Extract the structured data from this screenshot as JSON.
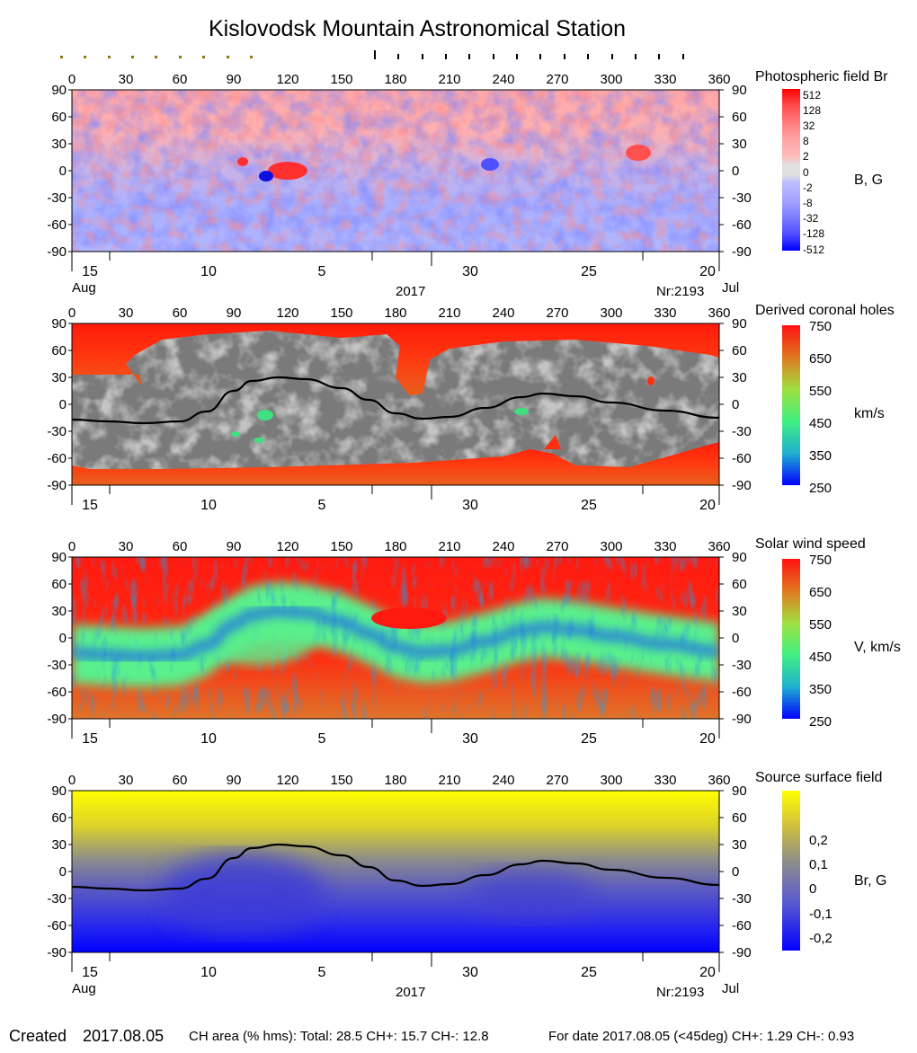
{
  "title": "Kislovodsk Mountain Astronomical Station",
  "chart_data": [
    {
      "type": "heatmap",
      "title": "Photospheric field Br",
      "unit": "B, G",
      "colorbar_ticks": [
        "512",
        "128",
        "32",
        "8",
        "2",
        "0",
        "-2",
        "-8",
        "-32",
        "-128",
        "-512"
      ],
      "x_ticks": [
        "0",
        "30",
        "60",
        "90",
        "120",
        "150",
        "180",
        "210",
        "240",
        "270",
        "300",
        "330",
        "360"
      ],
      "y_ticks": [
        "90",
        "60",
        "30",
        "0",
        "-30",
        "-60",
        "-90"
      ],
      "date_ticks": [
        "15",
        "10",
        "5",
        "30",
        "25",
        "20"
      ],
      "month_left": "Aug",
      "month_right": "Jul",
      "year": "2017",
      "rotation": "Nr:2193",
      "xlim": [
        0,
        360
      ],
      "ylim": [
        -90,
        90
      ]
    },
    {
      "type": "heatmap",
      "title": "Derived coronal holes",
      "unit": "km/s",
      "colorbar_ticks": [
        "750",
        "650",
        "550",
        "450",
        "350",
        "250"
      ],
      "x_ticks": [
        "0",
        "30",
        "60",
        "90",
        "120",
        "150",
        "180",
        "210",
        "240",
        "270",
        "300",
        "330",
        "360"
      ],
      "y_ticks": [
        "90",
        "60",
        "30",
        "0",
        "-30",
        "-60",
        "-90"
      ],
      "date_ticks": [
        "15",
        "10",
        "5",
        "30",
        "25",
        "20"
      ],
      "xlim": [
        0,
        360
      ],
      "ylim": [
        -90,
        90
      ],
      "neutral_line": [
        [
          0,
          -17
        ],
        [
          20,
          -19
        ],
        [
          40,
          -21
        ],
        [
          60,
          -19
        ],
        [
          75,
          -8
        ],
        [
          90,
          15
        ],
        [
          100,
          26
        ],
        [
          115,
          30
        ],
        [
          130,
          28
        ],
        [
          150,
          18
        ],
        [
          165,
          5
        ],
        [
          180,
          -10
        ],
        [
          195,
          -16
        ],
        [
          210,
          -14
        ],
        [
          230,
          -4
        ],
        [
          250,
          8
        ],
        [
          262,
          12
        ],
        [
          280,
          9
        ],
        [
          300,
          2
        ],
        [
          330,
          -7
        ],
        [
          360,
          -15
        ]
      ]
    },
    {
      "type": "heatmap",
      "title": "Solar wind speed",
      "unit": "V, km/s",
      "colorbar_ticks": [
        "750",
        "650",
        "550",
        "450",
        "350",
        "250"
      ],
      "x_ticks": [
        "0",
        "30",
        "60",
        "90",
        "120",
        "150",
        "180",
        "210",
        "240",
        "270",
        "300",
        "330",
        "360"
      ],
      "y_ticks": [
        "90",
        "60",
        "30",
        "0",
        "-30",
        "-60",
        "-90"
      ],
      "date_ticks": [
        "15",
        "10",
        "5",
        "30",
        "25",
        "20"
      ],
      "xlim": [
        0,
        360
      ],
      "ylim": [
        -90,
        90
      ]
    },
    {
      "type": "heatmap",
      "title": "Source surface field",
      "unit": "Br, G",
      "colorbar_ticks": [
        "0,2",
        "0,1",
        "0",
        "-0,1",
        "-0,2"
      ],
      "x_ticks": [
        "0",
        "30",
        "60",
        "90",
        "120",
        "150",
        "180",
        "210",
        "240",
        "270",
        "300",
        "330",
        "360"
      ],
      "y_ticks": [
        "90",
        "60",
        "30",
        "0",
        "-30",
        "-60",
        "-90"
      ],
      "date_ticks": [
        "15",
        "10",
        "5",
        "30",
        "25",
        "20"
      ],
      "month_left": "Aug",
      "month_right": "Jul",
      "year": "2017",
      "rotation": "Nr:2193",
      "xlim": [
        0,
        360
      ],
      "ylim": [
        -90,
        90
      ],
      "neutral_line": [
        [
          0,
          -17
        ],
        [
          20,
          -19
        ],
        [
          40,
          -21
        ],
        [
          60,
          -19
        ],
        [
          75,
          -8
        ],
        [
          90,
          15
        ],
        [
          100,
          26
        ],
        [
          115,
          30
        ],
        [
          130,
          28
        ],
        [
          150,
          18
        ],
        [
          165,
          5
        ],
        [
          180,
          -10
        ],
        [
          195,
          -16
        ],
        [
          210,
          -14
        ],
        [
          230,
          -4
        ],
        [
          250,
          8
        ],
        [
          262,
          12
        ],
        [
          280,
          9
        ],
        [
          300,
          2
        ],
        [
          330,
          -7
        ],
        [
          360,
          -15
        ]
      ]
    }
  ],
  "footer": {
    "created_label": "Created",
    "created_date": "2017.08.05",
    "ch_area": "CH area (% hms): Total: 28.5 CH+: 15.7    CH-: 12.8",
    "for_date": "For date 2017.08.05 (<45deg) CH+: 1.29    CH-: 0.93"
  }
}
